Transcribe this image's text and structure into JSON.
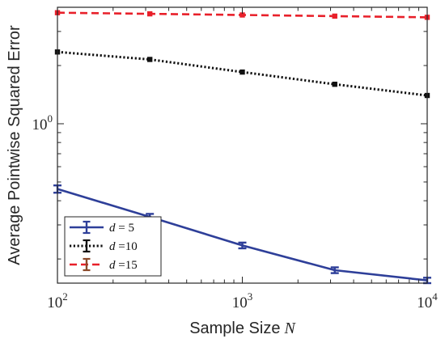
{
  "chart_data": {
    "type": "line",
    "title": "",
    "xlabel": "Sample Size",
    "xlabel_var": "N",
    "ylabel": "Average Pointwise Squared Error",
    "xscale": "log",
    "yscale": "log",
    "xlim": [
      100,
      10000
    ],
    "ylim": [
      0.15,
      4.0
    ],
    "x": [
      100,
      316,
      1000,
      3162,
      10000
    ],
    "x_ticks": [
      {
        "value": 100,
        "base": "10",
        "exp": "2"
      },
      {
        "value": 1000,
        "base": "10",
        "exp": "3"
      },
      {
        "value": 10000,
        "base": "10",
        "exp": "4"
      }
    ],
    "y_ticks": [
      {
        "value": 1,
        "base": "10",
        "exp": "0"
      }
    ],
    "grid": false,
    "legend_position": "bottom-left",
    "series": [
      {
        "name": "d = 5",
        "var": "d",
        "op": " = ",
        "num": "5",
        "color": "#2E3F99",
        "dash": "solid",
        "marker": "errorbar",
        "values": [
          0.46,
          0.33,
          0.235,
          0.175,
          0.155
        ],
        "errors": [
          0.02,
          0.012,
          0.008,
          0.006,
          0.005
        ]
      },
      {
        "name": "d =10",
        "var": "d",
        "op": " =",
        "num": "10",
        "color": "#111111",
        "dash": "dotted",
        "marker": "square",
        "values": [
          2.35,
          2.15,
          1.85,
          1.6,
          1.4
        ],
        "errors": [
          0.03,
          0.03,
          0.02,
          0.02,
          0.02
        ]
      },
      {
        "name": "d =15",
        "var": "d",
        "op": " =",
        "num": "15",
        "color": "#E8202A",
        "legend_marker_color": "#8B4A2B",
        "dash": "dashed",
        "marker": "square",
        "values": [
          3.75,
          3.7,
          3.65,
          3.6,
          3.55
        ],
        "errors": [
          0.04,
          0.04,
          0.04,
          0.04,
          0.04
        ]
      }
    ]
  }
}
